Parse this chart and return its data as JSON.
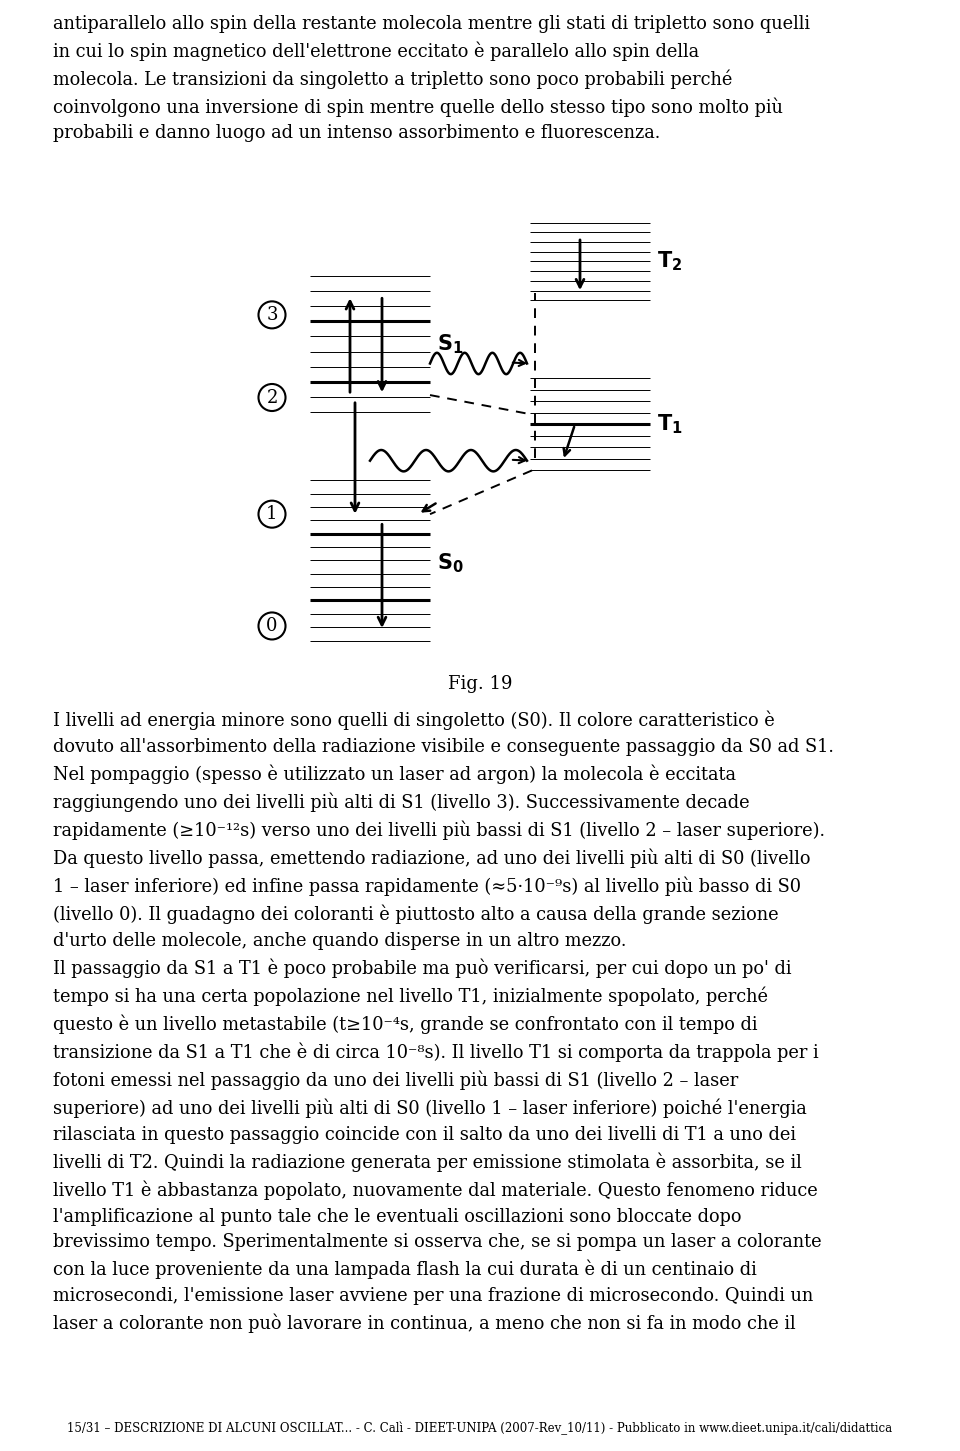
{
  "background": "#ffffff",
  "fig_caption": "Fig. 19",
  "top_text": "antiparallelo allo spin della restante molecola mentre gli stati di tripletto sono quelli\nin cui lo spin magnetico dell'elettrone eccitato è parallelo allo spin della\nmolecola. Le transizioni da singoletto a tripletto sono poco probabili perché\ncoinvolgono una inversione di spin mentre quelle dello stesso tipo sono molto più\nprobabili e danno luogo ad un intenso assorbimento e fluorescenza.",
  "bottom_text": "I livelli ad energia minore sono quelli di singoletto (S0). Il colore caratteristico è\ndovuto all'assorbimento della radiazione visibile e conseguente passaggio da S0 ad S1.\nNel pompaggio (spesso è utilizzato un laser ad argon) la molecola è eccitata\nraggiungendo uno dei livelli più alti di S1 (livello 3). Successivamente decade\nrapidamente (≥10⁻¹²s) verso uno dei livelli più bassi di S1 (livello 2 – laser superiore).\nDa questo livello passa, emettendo radiazione, ad uno dei livelli più alti di S0 (livello\n1 – laser inferiore) ed infine passa rapidamente (≈5·10⁻⁹s) al livello più basso di S0\n(livello 0). Il guadagno dei coloranti è piuttosto alto a causa della grande sezione\nd'urto delle molecole, anche quando disperse in un altro mezzo.\nIl passaggio da S1 a T1 è poco probabile ma può verificarsi, per cui dopo un po' di\ntempo si ha una certa popolazione nel livello T1, inizialmente spopolato, perché\nquesto è un livello metastabile (t≥10⁻⁴s, grande se confrontato con il tempo di\ntransizione da S1 a T1 che è di circa 10⁻⁸s). Il livello T1 si comporta da trappola per i\nfotoni emessi nel passaggio da uno dei livelli più bassi di S1 (livello 2 – laser\nsuperiore) ad uno dei livelli più alti di S0 (livello 1 – laser inferiore) poiché l'energia\nrilasciata in questo passaggio coincide con il salto da uno dei livelli di T1 a uno dei\nlivelli di T2. Quindi la radiazione generata per emissione stimolata è assorbita, se il\nlivello T1 è abbastanza popolato, nuovamente dal materiale. Questo fenomeno riduce\nl'amplificazione al punto tale che le eventuali oscillazioni sono bloccate dopo\nbrevissimo tempo. Sperimentalmente si osserva che, se si pompa un laser a colorante\ncon la luce proveniente da una lampada flash la cui durata è di un centinaio di\nmicrosecondi, l'emissione laser avviene per una frazione di microsecondo. Quindi un\nlaser a colorante non può lavorare in continua, a meno che non si fa in modo che il",
  "footer": "15/31 – DESCRIZIONE DI ALCUNI OSCILLAT... - C. Calì - DIEET-UNIPA (2007-Rev_10/11) - Pubblicato in www.dieet.unipa.it/cali/didattica"
}
